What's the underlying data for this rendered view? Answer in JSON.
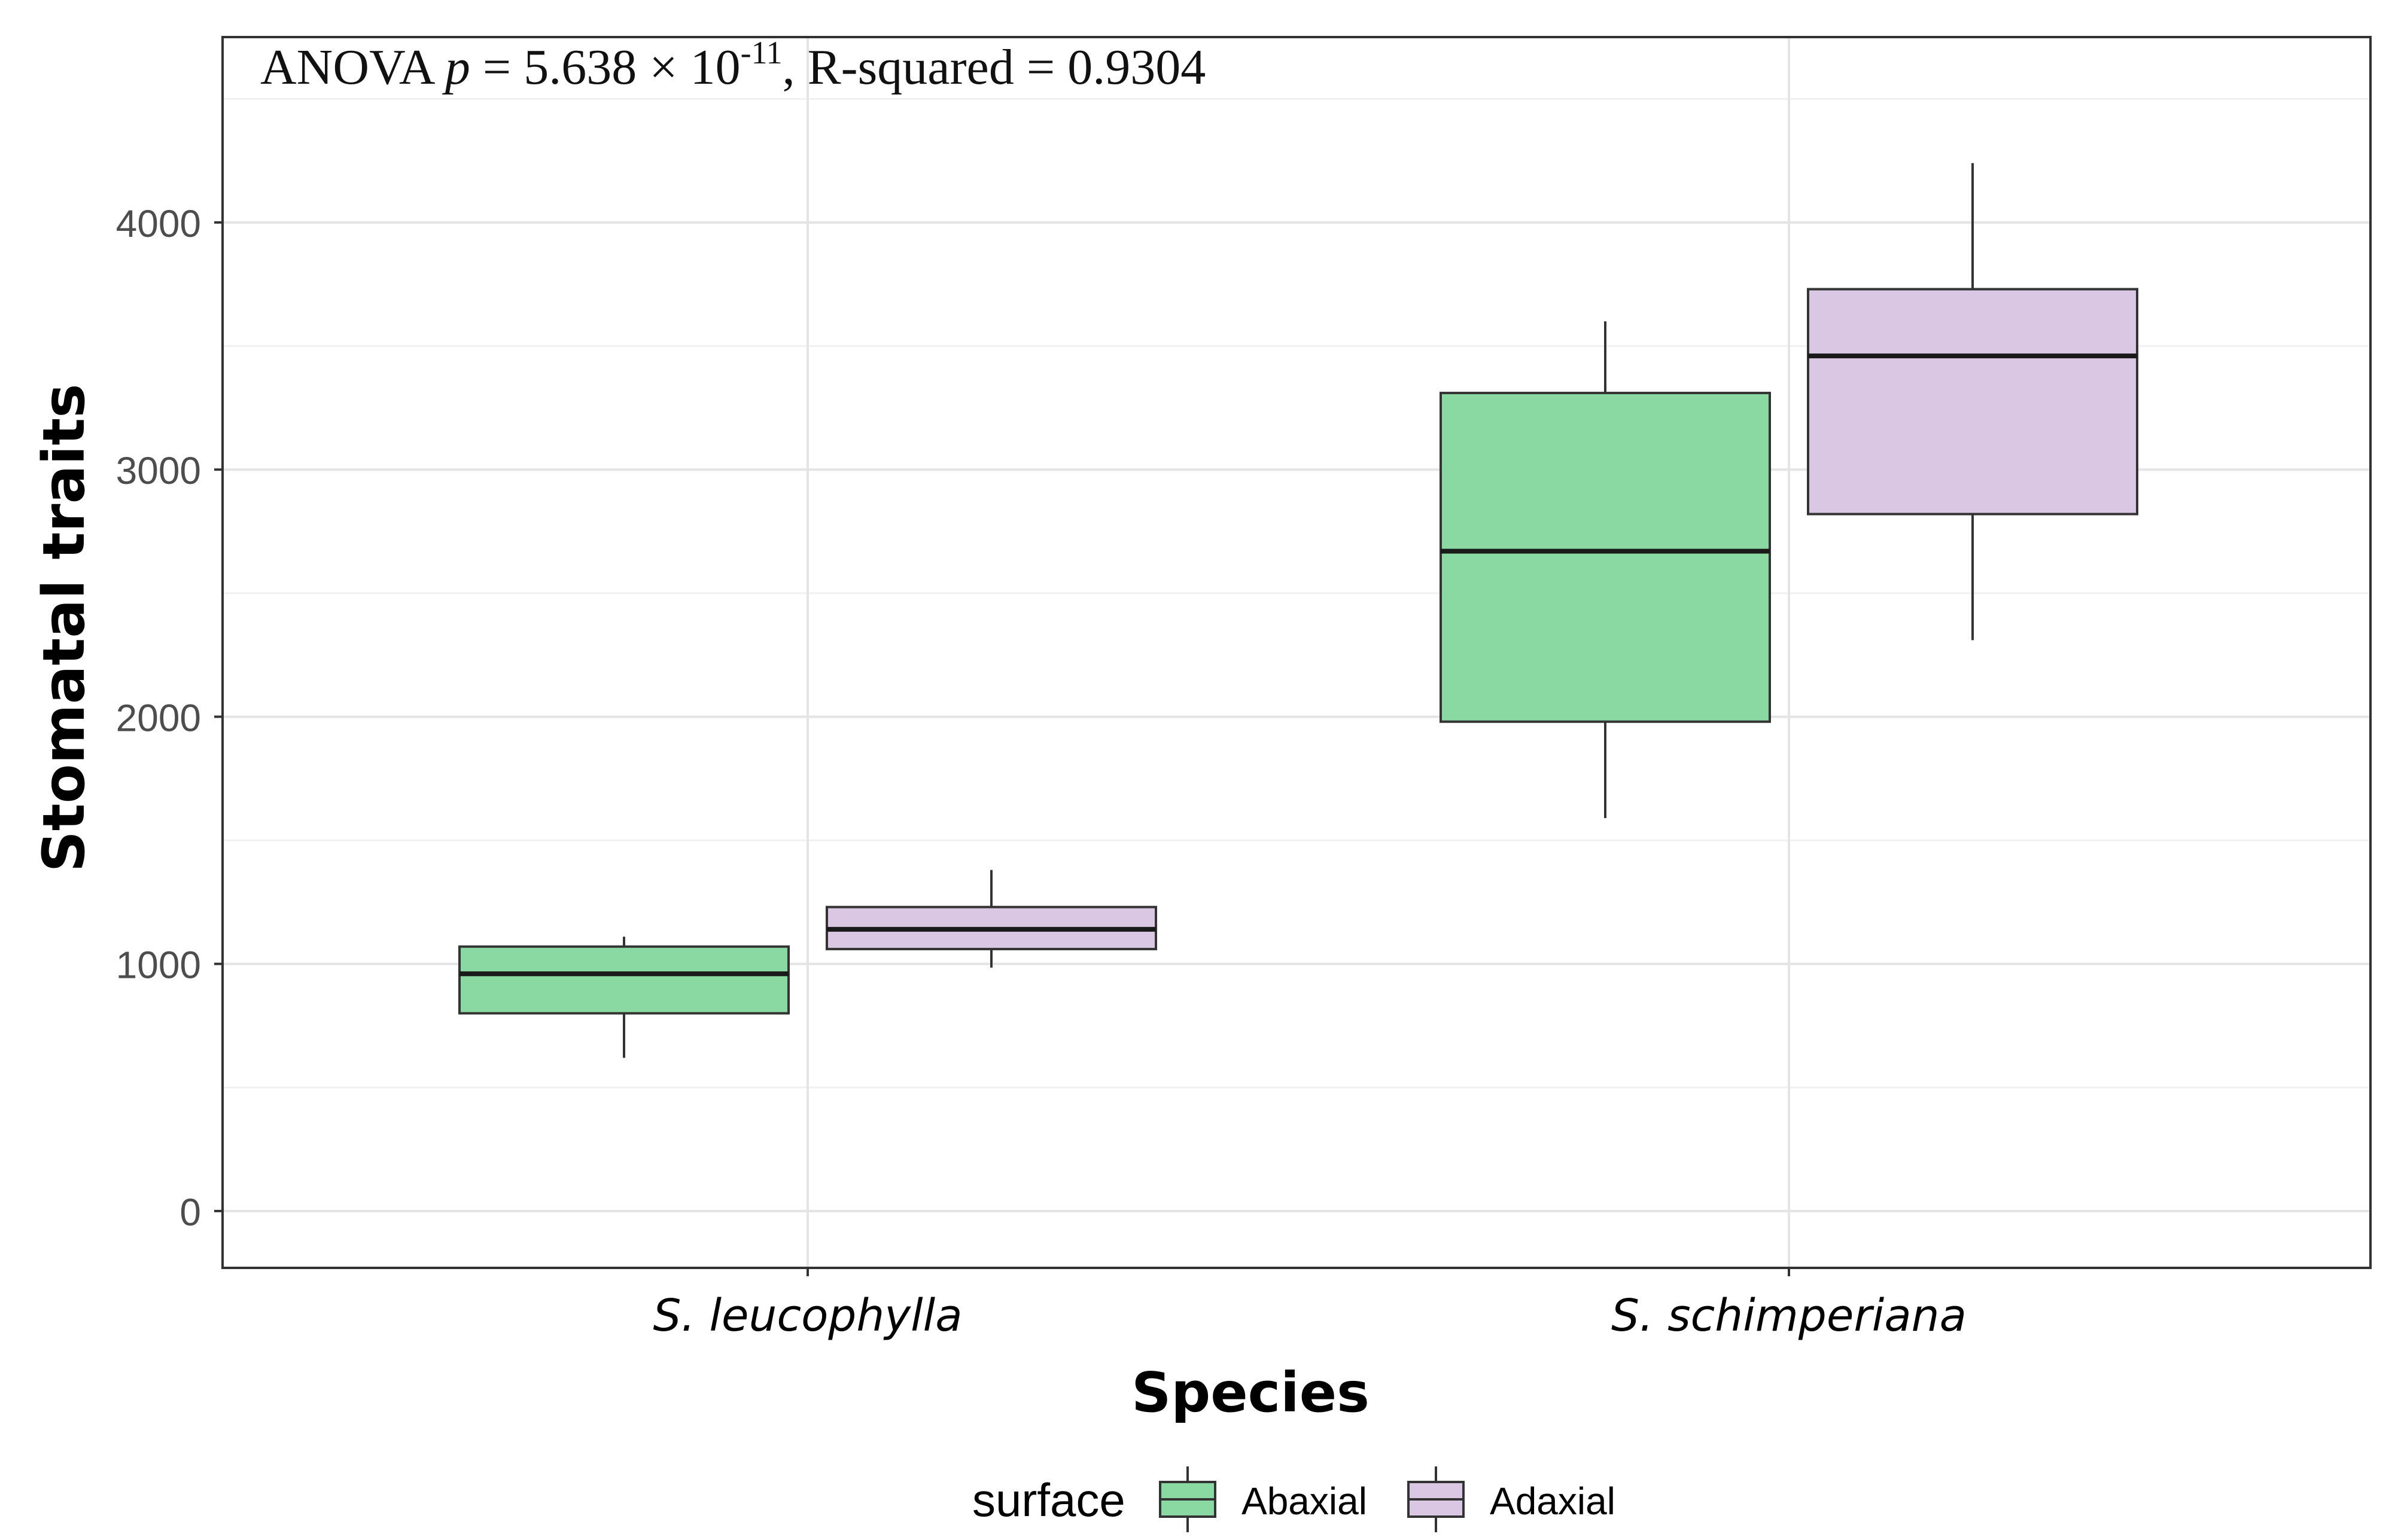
{
  "chart_data": {
    "type": "box",
    "annotation": {
      "prefix": "ANOVA ",
      "p_symbol": "p",
      "p_value": " = 5.638 × 10",
      "exponent": "-11",
      "r_squared": ", R-squared = 0.9304"
    },
    "xlabel": "Species",
    "ylabel": "Stomatal traits",
    "ylim": [
      -230,
      4750
    ],
    "yticks": [
      "0",
      "1000",
      "2000",
      "3000",
      "4000"
    ],
    "categories": [
      "S. leucophylla",
      "S. schimperiana"
    ],
    "legend": {
      "title": "surface",
      "position": "bottom"
    },
    "series": [
      {
        "name": "Abaxial",
        "color": "#8bd9a2",
        "boxes": [
          {
            "min": 620,
            "q1": 800,
            "median": 960,
            "q3": 1070,
            "max": 1110
          },
          {
            "min": 1590,
            "q1": 1980,
            "median": 2670,
            "q3": 3310,
            "max": 3600
          }
        ]
      },
      {
        "name": "Adaxial",
        "color": "#d9c7e4",
        "boxes": [
          {
            "min": 985,
            "q1": 1060,
            "median": 1140,
            "q3": 1230,
            "max": 1380
          },
          {
            "min": 2310,
            "q1": 2820,
            "median": 3460,
            "q3": 3730,
            "max": 4240
          }
        ]
      }
    ],
    "grid": true
  }
}
